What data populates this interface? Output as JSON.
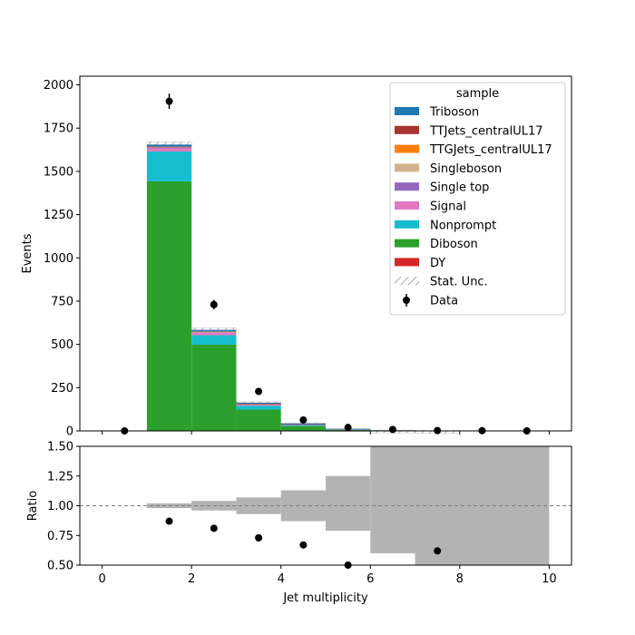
{
  "chart_data": [
    {
      "type": "bar",
      "stacked": true,
      "xlabel": "",
      "ylabel": "Events",
      "xlim": [
        -0.5,
        10.5
      ],
      "ylim": [
        0,
        2050
      ],
      "yticks": [
        "0",
        "250",
        "500",
        "750",
        "1000",
        "1250",
        "1500",
        "1750",
        "2000"
      ],
      "ytick_values": [
        0,
        250,
        500,
        750,
        1000,
        1250,
        1500,
        1750,
        2000
      ],
      "bin_edges": [
        0,
        1,
        2,
        3,
        4,
        5,
        6,
        7,
        8,
        9,
        10
      ],
      "legend_title": "sample",
      "legend_position": "upper right",
      "series": [
        {
          "name": "DY",
          "color": "#d62728",
          "values": [
            0,
            2,
            1,
            0.5,
            0,
            0,
            0,
            0,
            0,
            0
          ]
        },
        {
          "name": "Diboson",
          "color": "#2ca02c",
          "values": [
            0,
            1440,
            497,
            123,
            28,
            7,
            2,
            1,
            0,
            0
          ]
        },
        {
          "name": "Nonprompt",
          "color": "#17becf",
          "values": [
            0,
            173,
            55,
            22,
            6,
            2,
            0.5,
            0,
            0,
            0
          ]
        },
        {
          "name": "Signal",
          "color": "#e377c2",
          "values": [
            0,
            18,
            15,
            7,
            3,
            1,
            0,
            0,
            0,
            0
          ]
        },
        {
          "name": "Single top",
          "color": "#9467bd",
          "values": [
            0,
            5,
            3,
            2,
            1,
            0,
            0,
            0,
            0,
            0
          ]
        },
        {
          "name": "Singleboson",
          "color": "#d2b48c",
          "values": [
            0,
            2,
            1,
            1,
            0,
            0,
            0,
            0,
            0,
            0
          ]
        },
        {
          "name": "TTGJets_centralUL17",
          "color": "#ff7f0e",
          "values": [
            0,
            1,
            1,
            0.5,
            0,
            0,
            0,
            0,
            0,
            0
          ]
        },
        {
          "name": "TTJets_centralUL17",
          "color": "#aa3333",
          "values": [
            0,
            2,
            2,
            1,
            1,
            0,
            0,
            0,
            0,
            0
          ]
        },
        {
          "name": "Triboson",
          "color": "#1f77b4",
          "values": [
            0,
            12,
            9,
            6,
            4,
            2,
            1,
            0.5,
            0,
            0
          ]
        }
      ],
      "stat_unc": {
        "name": "Stat. Unc.",
        "rel": [
          0,
          0.01,
          0.02,
          0.03,
          0.05,
          0.1,
          0.3,
          0.5,
          0,
          0
        ]
      },
      "data": {
        "name": "Data",
        "x": [
          0.5,
          1.5,
          2.5,
          3.5,
          4.5,
          5.5,
          6.5,
          7.5,
          8.5,
          9.5
        ],
        "y": [
          0,
          1905,
          730,
          228,
          63,
          20,
          8,
          2,
          1,
          0
        ],
        "err": [
          0,
          44,
          27,
          15,
          8,
          4.5,
          2.8,
          1.4,
          1,
          0
        ]
      },
      "legend_order": [
        "Triboson",
        "TTJets_centralUL17",
        "TTGJets_centralUL17",
        "Singleboson",
        "Single top",
        "Signal",
        "Nonprompt",
        "Diboson",
        "DY",
        "Stat. Unc.",
        "Data"
      ]
    },
    {
      "type": "scatter",
      "xlabel": "Jet multiplicity",
      "ylabel": "Ratio",
      "xlim": [
        -0.5,
        10.5
      ],
      "ylim": [
        0.5,
        1.5
      ],
      "xticks": [
        "0",
        "2",
        "4",
        "6",
        "8",
        "10"
      ],
      "xtick_values": [
        0,
        2,
        4,
        6,
        8,
        10
      ],
      "yticks": [
        "0.50",
        "0.75",
        "1.00",
        "1.25",
        "1.50"
      ],
      "ytick_values": [
        0.5,
        0.75,
        1.0,
        1.25,
        1.5
      ],
      "reference_line": 1.0,
      "unc_band": {
        "bin_edges": [
          1,
          2,
          3,
          4,
          5,
          6,
          7,
          10
        ],
        "low": [
          0.98,
          0.96,
          0.93,
          0.87,
          0.79,
          0.6,
          0.0
        ],
        "high": [
          1.02,
          1.04,
          1.07,
          1.13,
          1.25,
          2.0,
          2.0
        ]
      },
      "points": {
        "x": [
          1.5,
          2.5,
          3.5,
          4.5,
          5.5,
          7.5
        ],
        "y": [
          0.87,
          0.81,
          0.73,
          0.67,
          0.49,
          0.62
        ]
      }
    }
  ]
}
